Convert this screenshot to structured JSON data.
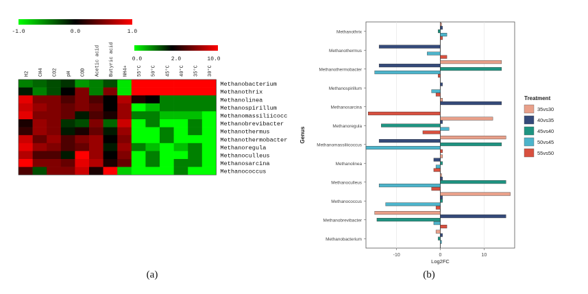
{
  "chart_data": [
    {
      "type": "heatmap",
      "panel_label": "(a)",
      "rows": [
        "Methanobacterium",
        "Methanothrix",
        "Methanolinea",
        "Methanospirillum",
        "Methanomassiliicoccus",
        "Methanobrevibacter",
        "Methanothermus",
        "Methanothermobacter",
        "Methanoregula",
        "Methanoculleus",
        "Methanosarcina",
        "Methanococcus"
      ],
      "correlation": {
        "columns": [
          "H2",
          "CH4",
          "CO2",
          "pH",
          "COD",
          "Acetic acid",
          "Butyric acid",
          "NH4+"
        ],
        "scale": {
          "min": -1.0,
          "mid": 0.0,
          "max": 1.0,
          "tick_labels": [
            "-1.0",
            "0.0",
            "1.0"
          ]
        },
        "values": [
          [
            -0.5,
            -0.4,
            -0.3,
            -0.2,
            -0.6,
            -0.5,
            -0.3,
            -0.9
          ],
          [
            -0.1,
            -0.5,
            -0.3,
            0.0,
            0.5,
            -0.5,
            0.5,
            -0.9
          ],
          [
            0.9,
            0.5,
            0.5,
            0.3,
            0.5,
            0.3,
            0.0,
            0.7
          ],
          [
            0.8,
            0.6,
            0.5,
            0.4,
            0.5,
            0.4,
            0.0,
            0.6
          ],
          [
            0.9,
            0.5,
            0.5,
            0.4,
            -0.1,
            0.3,
            0.1,
            0.6
          ],
          [
            0.1,
            0.6,
            0.5,
            -0.2,
            -0.3,
            0.5,
            -0.4,
            0.8
          ],
          [
            0.2,
            0.6,
            0.5,
            -0.1,
            0.1,
            0.4,
            -0.1,
            0.6
          ],
          [
            0.8,
            0.4,
            0.6,
            0.3,
            0.5,
            0.6,
            0.0,
            0.5
          ],
          [
            0.9,
            0.6,
            0.5,
            0.3,
            0.4,
            0.6,
            -0.1,
            0.6
          ],
          [
            0.7,
            0.3,
            0.3,
            -0.1,
            1.0,
            0.6,
            0.0,
            0.5
          ],
          [
            1.0,
            0.5,
            0.5,
            0.4,
            0.9,
            0.7,
            0.1,
            0.4
          ],
          [
            0.3,
            -0.3,
            0.5,
            0.5,
            0.8,
            0.1,
            1.0,
            -0.8
          ]
        ]
      },
      "abundance": {
        "columns": [
          "55°C",
          "50°C",
          "45°C",
          "40°C",
          "35°C",
          "30°C"
        ],
        "scale": {
          "min": 0.0,
          "max": 10.0,
          "tick_labels": [
            "0.0",
            "2.0",
            "10.0"
          ]
        },
        "values": [
          [
            10,
            10,
            10,
            10,
            10,
            10
          ],
          [
            10,
            10,
            10,
            10,
            10,
            10
          ],
          [
            3,
            2,
            1,
            1,
            1,
            1
          ],
          [
            0,
            0.5,
            1,
            1,
            1,
            1
          ],
          [
            1,
            1,
            0.5,
            0.5,
            0.5,
            0
          ],
          [
            0,
            1,
            0,
            0,
            1,
            0
          ],
          [
            0,
            0,
            1,
            0,
            1,
            0
          ],
          [
            0,
            0,
            1,
            0,
            0,
            0
          ],
          [
            1,
            0.5,
            0,
            0.5,
            1,
            0
          ],
          [
            0,
            1,
            0,
            0,
            1,
            0
          ],
          [
            0,
            1,
            0,
            1,
            1,
            0
          ],
          [
            0,
            0,
            0,
            1,
            0,
            0
          ]
        ]
      }
    },
    {
      "type": "bar",
      "orientation": "horizontal",
      "panel_label": "(b)",
      "ylabel": "Genus",
      "xlabel": "Log2FC",
      "xlim": [
        -17,
        17
      ],
      "xticks": [
        -10,
        0,
        10
      ],
      "xtick_labels": [
        "-10",
        "0",
        "10"
      ],
      "categories": [
        "Methanothrix",
        "Methanothermus",
        "Methanothermobacter",
        "Methanospirillum",
        "Methanosarcina",
        "Methanoregula",
        "Methanomassiliicoccus",
        "Methanolinea",
        "Methanoculleus",
        "Methanococcus",
        "Methanobrevibacter",
        "Methanobacterium"
      ],
      "legend": {
        "title": "Treatment",
        "position": "right"
      },
      "series": [
        {
          "name": "35vs30",
          "color": "#e9a08a",
          "values": [
            0.3,
            0,
            14,
            0,
            0.5,
            12,
            15,
            0.5,
            0.3,
            16,
            -15,
            -1
          ]
        },
        {
          "name": "40vs35",
          "color": "#354a7a",
          "values": [
            0.5,
            -14,
            -14,
            0.5,
            14,
            0.5,
            -14,
            -1.5,
            0.5,
            0.5,
            15,
            0.5
          ]
        },
        {
          "name": "45vs40",
          "color": "#1f9482",
          "values": [
            -0.5,
            0,
            14,
            0,
            0,
            -13.5,
            14,
            0.5,
            15,
            0.5,
            -14.5,
            -0.5
          ]
        },
        {
          "name": "50vs45",
          "color": "#4db4cb",
          "values": [
            1.5,
            -3,
            -15,
            -2,
            0,
            2,
            -17,
            -1,
            -14,
            -12.5,
            -1.5,
            0.3
          ]
        },
        {
          "name": "55vs50",
          "color": "#d8503f",
          "values": [
            0.5,
            1.5,
            -0.5,
            -1,
            -16.5,
            -4,
            0.5,
            -1.5,
            -2,
            -1,
            1.5,
            0
          ]
        }
      ]
    }
  ]
}
